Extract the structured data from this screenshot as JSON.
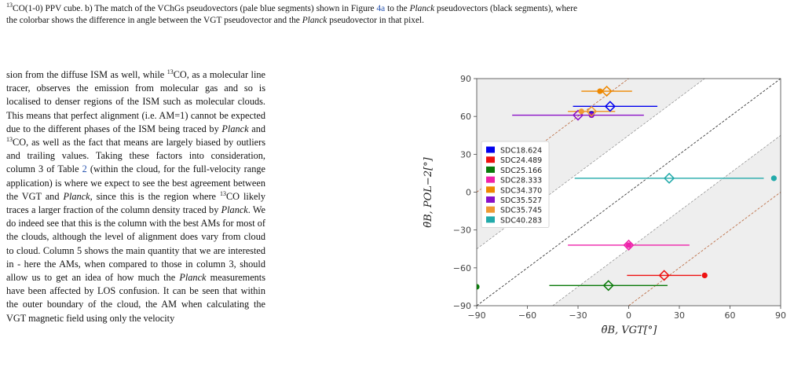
{
  "caption": {
    "iso": "13",
    "part1": "CO(1-0) PPV cube. b) The match of the VChGs pseudovectors (pale blue segments) shown in Figure ",
    "fig_ref": "4a",
    "part2": " to the ",
    "planck1": "Planck",
    "part3": " pseudovectors (black segments), where",
    "line2a": "the colorbar shows the difference in angle between the VGT pseudovector and the ",
    "planck2": "Planck",
    "line2b": " pseudovector in that pixel."
  },
  "body": {
    "t1": "sion from the diffuse ISM as well, while ",
    "iso": "13",
    "t2": "CO, as a molecular line tracer, observes the emission from molecular gas and so is localised to denser regions of the ISM such as molecular clouds. This means that perfect alignment (i.e. AM=1) cannot be expected due to the different phases of the ISM being traced by ",
    "planck": "Planck",
    "t3": " and ",
    "t4": "CO, as well as the fact that means are largely biased by outliers and trailing values. Taking these factors into consideration, column 3 of Table ",
    "table_ref": "2",
    "t5": " (within the cloud, for the full-velocity range application) is where we expect to see the best agreement between the VGT and ",
    "t6": ", since this is the region where ",
    "t7": "CO likely traces a larger fraction of the column density traced by ",
    "t8": ". We do indeed see that this is the column with the best AMs for most of the clouds, although the level of alignment does vary from cloud to cloud. Column 5 shows the main quantity that we are interested in - here the AMs, when compared to those in column 3, should allow us to get an idea of how much the ",
    "t9": " measurements have been affected by LOS confusion. It can be seen that within the outer boundary of the cloud, the AM when calculating the VGT magnetic field using only the velocity"
  },
  "chart_data": {
    "type": "scatter",
    "xlabel": "θ̄B, VGT[°]",
    "ylabel": "θ̄B, POL−2[°]",
    "xlim": [
      -90,
      90
    ],
    "ylim": [
      -90,
      90
    ],
    "xticks": [
      -90,
      -60,
      -30,
      0,
      30,
      60,
      90
    ],
    "yticks": [
      -90,
      -60,
      -30,
      0,
      30,
      60,
      90
    ],
    "xtick_labels": [
      "−90",
      "−60",
      "−30",
      "0",
      "30",
      "60",
      "90"
    ],
    "ytick_labels": [
      "−90",
      "−60",
      "−30",
      "0",
      "30",
      "60",
      "90"
    ],
    "grid": false,
    "legend_position": "center-left",
    "series": [
      {
        "name": "SDC18.624",
        "color": "#0000ee",
        "diamond": {
          "x": -11,
          "y": 68,
          "xerr_lo": -33,
          "xerr_hi": 17
        },
        "dot": {
          "x": -22,
          "y": 62
        }
      },
      {
        "name": "SDC24.489",
        "color": "#ee1111",
        "diamond": {
          "x": 21,
          "y": -66,
          "xerr_lo": -1,
          "xerr_hi": 43
        },
        "dot": {
          "x": 45,
          "y": -66
        }
      },
      {
        "name": "SDC25.166",
        "color": "#0a7a0a",
        "diamond": {
          "x": -12,
          "y": -74,
          "xerr_lo": -47,
          "xerr_hi": 23
        },
        "dot": {
          "x": -90,
          "y": -75
        }
      },
      {
        "name": "SDC28.333",
        "color": "#ee22aa",
        "diamond": {
          "x": 0,
          "y": -42,
          "xerr_lo": -36,
          "xerr_hi": 36
        },
        "dot": {
          "x": 0,
          "y": -42
        }
      },
      {
        "name": "SDC34.370",
        "color": "#ee8800",
        "diamond": {
          "x": -13,
          "y": 80,
          "xerr_lo": -28,
          "xerr_hi": 2
        },
        "dot": {
          "x": -17,
          "y": 80
        }
      },
      {
        "name": "SDC35.527",
        "color": "#8a10c8",
        "diamond": {
          "x": -30,
          "y": 61,
          "xerr_lo": -69,
          "xerr_hi": 9
        },
        "dot": {
          "x": -22,
          "y": 61
        }
      },
      {
        "name": "SDC35.745",
        "color": "#ee9933",
        "diamond": {
          "x": -22,
          "y": 64,
          "xerr_lo": -36,
          "xerr_hi": -8
        },
        "dot": {
          "x": -28,
          "y": 64
        }
      },
      {
        "name": "SDC40.283",
        "color": "#22aaaa",
        "diamond": {
          "x": 24,
          "y": 11,
          "xerr_lo": -32,
          "xerr_hi": 80
        },
        "dot": {
          "x": 86,
          "y": 11
        }
      }
    ]
  }
}
